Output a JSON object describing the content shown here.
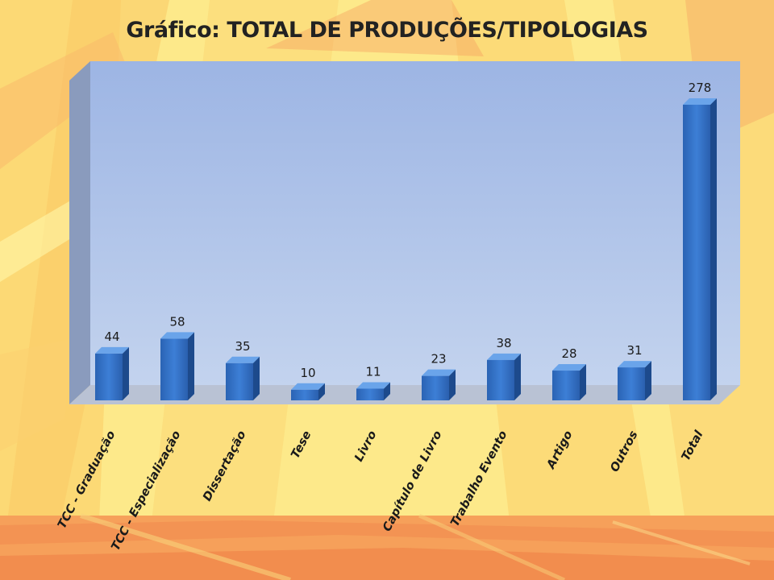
{
  "slide": {
    "title": "Gráfico: TOTAL DE PRODUÇÕES/TIPOLOGIAS"
  },
  "colors": {
    "bar_front": "#2f6fc4",
    "bar_side": "#1d4a8c",
    "bar_top": "#6aa4ea",
    "plot_back": "#9eb9e6",
    "plot_side": "#8a9fc4",
    "floor": "#bcc6d8"
  },
  "chart_data": {
    "type": "bar",
    "title": "Gráfico: TOTAL DE PRODUÇÕES/TIPOLOGIAS",
    "categories": [
      "TCC - Graduação",
      "TCC - Especialização",
      "Dissertação",
      "Tese",
      "Livro",
      "Capítulo de Livro",
      "Trabalho Evento",
      "Artigo",
      "Outros",
      "Total"
    ],
    "values": [
      44,
      58,
      35,
      10,
      11,
      23,
      38,
      28,
      31,
      278
    ],
    "data_labels": [
      "44",
      "58",
      "35",
      "10",
      "11",
      "23",
      "38",
      "28",
      "31",
      "278"
    ],
    "ylim": [
      0,
      300
    ],
    "grid": false,
    "legend": false,
    "style": "3d-column"
  }
}
